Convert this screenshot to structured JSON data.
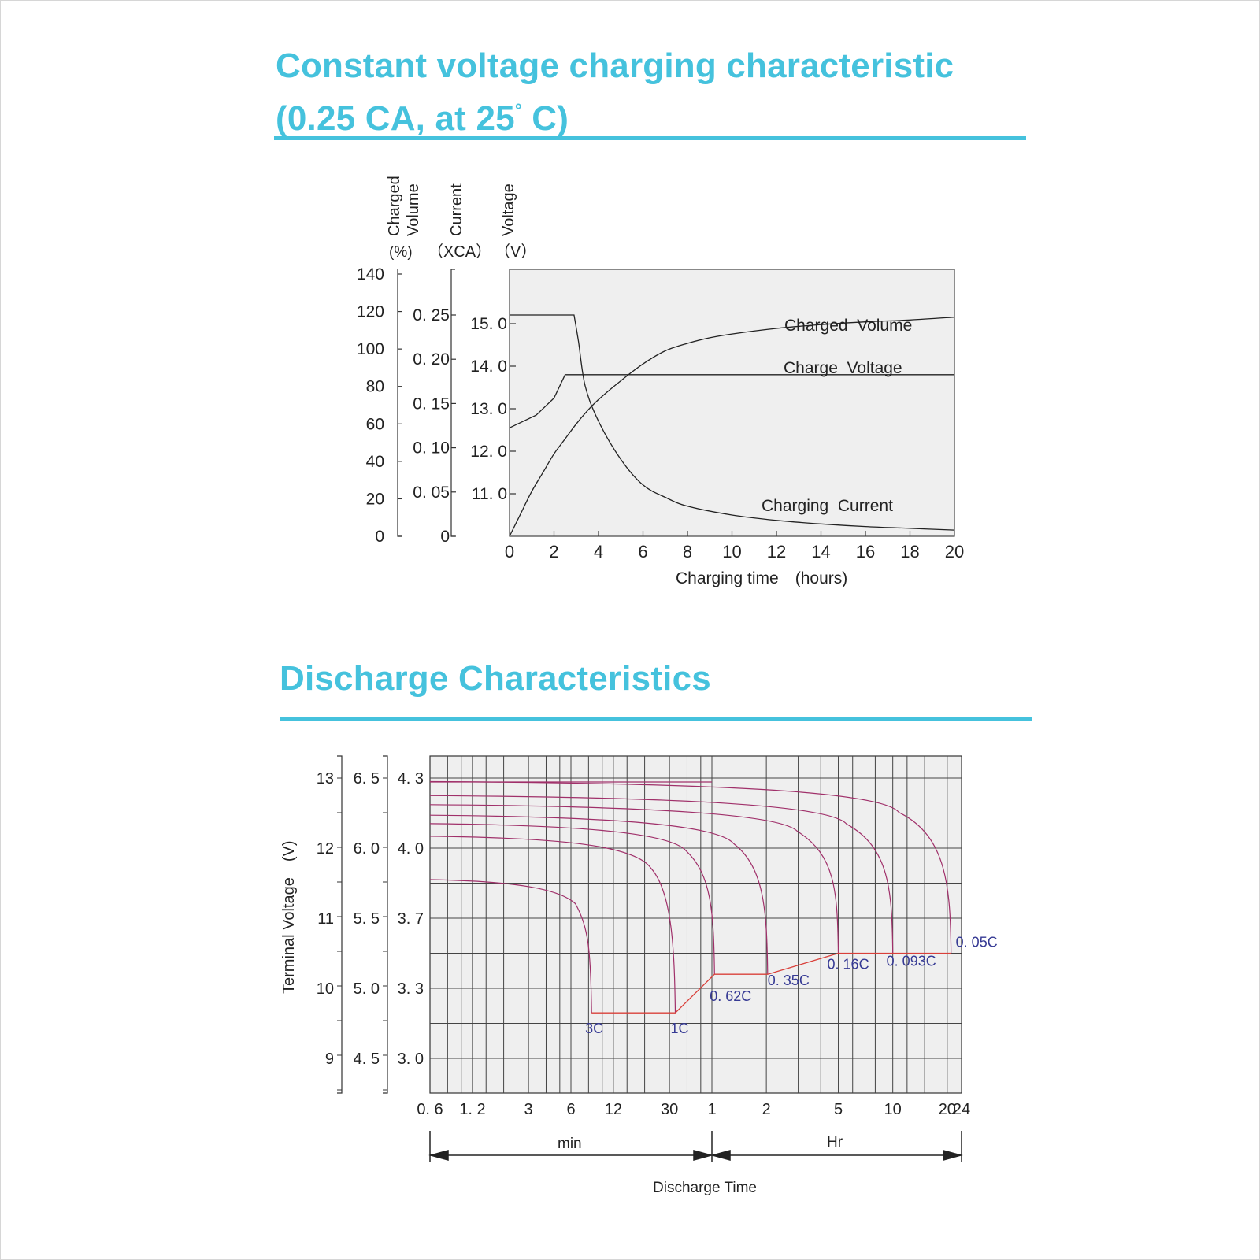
{
  "charts": [
    {
      "title_line1": "Constant voltage charging characteristic",
      "title_line2": " (0.25 CA, at 25",
      "title_degree": "°",
      "title_line2_end": " C)"
    },
    {
      "title_line1": "Discharge Characteristics"
    }
  ],
  "accent_color": "#45c2dd",
  "chart_data": [
    {
      "type": "line",
      "xlabel": "Charging time　(hours)",
      "xlim": [
        0,
        20
      ],
      "x_ticks": [
        "0",
        "2",
        "4",
        "6",
        "8",
        "10",
        "12",
        "14",
        "16",
        "18",
        "20"
      ],
      "axes": [
        {
          "label": "Charged Volume",
          "unit": "(%)",
          "ticks": [
            "140",
            "120",
            "100",
            "80",
            "60",
            "40",
            "20",
            "0"
          ],
          "range": [
            0,
            140
          ]
        },
        {
          "label": "Current",
          "unit": "（XCA）",
          "ticks": [
            "0. 25",
            "0. 20",
            "0. 15",
            "0. 10",
            "0. 05",
            "0"
          ],
          "range": [
            0,
            0.3
          ]
        },
        {
          "label": "Voltage",
          "unit": "（V）",
          "ticks": [
            "15. 0",
            "14. 0",
            "13. 0",
            "12. 0",
            "11. 0"
          ],
          "range": [
            10.0,
            16.0
          ]
        }
      ],
      "series": [
        {
          "name": "Charged  Volume",
          "axis": "percent",
          "x": [
            0,
            0.5,
            1,
            1.5,
            2,
            2.5,
            3,
            3.5,
            4,
            5,
            6,
            7,
            8,
            9,
            10,
            12,
            14,
            16,
            18,
            20
          ],
          "y": [
            0,
            12,
            24,
            34,
            44,
            52,
            60,
            67,
            73,
            83,
            92,
            99,
            103,
            106,
            108,
            111,
            113,
            114.5,
            115.5,
            117
          ]
        },
        {
          "name": "Charge  Voltage",
          "axis": "voltage",
          "x": [
            0,
            1.2,
            2,
            2.5,
            4,
            8,
            12,
            16,
            20
          ],
          "y": [
            12.55,
            12.85,
            13.25,
            13.8,
            13.8,
            13.8,
            13.8,
            13.8,
            13.8
          ]
        },
        {
          "name": "Charging  Current",
          "axis": "current",
          "x": [
            0,
            1,
            2,
            2.9,
            3.1,
            3.4,
            4,
            5,
            6,
            7,
            8,
            10,
            12,
            14,
            16,
            18,
            20
          ],
          "y": [
            0.25,
            0.25,
            0.25,
            0.25,
            0.22,
            0.17,
            0.13,
            0.087,
            0.058,
            0.044,
            0.034,
            0.024,
            0.018,
            0.014,
            0.011,
            0.009,
            0.007
          ]
        }
      ]
    },
    {
      "type": "line",
      "ylabel": "Terminal Voltage　(V)",
      "xlabel": "Discharge Time",
      "x_scale": "log",
      "x_ticks": [
        "0. 6",
        "1. 2",
        "3",
        "6",
        "12",
        "30",
        "1",
        "2",
        "5",
        "10",
        "20",
        "24"
      ],
      "y_axes": [
        {
          "ticks": [
            "13",
            "12",
            "11",
            "10",
            "9"
          ],
          "values": [
            13,
            12,
            11,
            10,
            9
          ]
        },
        {
          "ticks": [
            "6. 5",
            "6. 0",
            "5. 5",
            "5. 0",
            "4. 5"
          ],
          "values": [
            6.5,
            6.0,
            5.5,
            5.0,
            4.5
          ]
        },
        {
          "ticks": [
            "4. 3",
            "4. 0",
            "3. 7",
            "3. 3",
            "3. 0"
          ],
          "values": [
            4.3,
            4.0,
            3.7,
            3.3,
            3.0
          ]
        }
      ],
      "ylim": [
        8.5,
        13.3
      ],
      "min_label": "min",
      "hr_label": "Hr",
      "curve_color": "#a0306a",
      "endline_color": "#d9403a",
      "label_color": "#363a94",
      "series": [
        {
          "name": "3C",
          "start_v": 11.55,
          "end_minutes": 8.4,
          "end_v": 9.65
        },
        {
          "name": "1C",
          "start_v": 12.17,
          "end_minutes": 33,
          "end_v": 9.65
        },
        {
          "name": "0. 62C",
          "start_v": 12.35,
          "end_minutes": 62,
          "end_v": 10.2
        },
        {
          "name": "0. 35C",
          "start_v": 12.47,
          "end_minutes": 122,
          "end_v": 10.2
        },
        {
          "name": "0. 16C",
          "start_v": 12.62,
          "end_minutes": 300,
          "end_v": 10.5
        },
        {
          "name": "0. 093C",
          "start_v": 12.75,
          "end_minutes": 600,
          "end_v": 10.5
        },
        {
          "name": "0. 05C",
          "start_v": 12.95,
          "end_minutes": 1260,
          "end_v": 10.5
        }
      ]
    }
  ]
}
